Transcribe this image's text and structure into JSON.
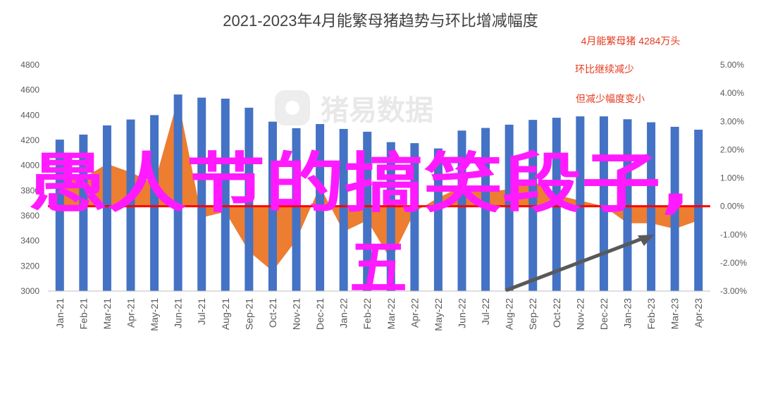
{
  "chart_data": {
    "type": "bar",
    "title": "2021-2023年4月能繁母猪趋势与环比增减幅度",
    "categories": [
      "Jan-21",
      "Feb-21",
      "Mar-21",
      "Apr-21",
      "May-21",
      "Jun-21",
      "Jul-21",
      "Aug-21",
      "Sep-21",
      "Oct-21",
      "Nov-21",
      "Dec-21",
      "Jan-22",
      "Feb-22",
      "Mar-22",
      "Apr-22",
      "May-22",
      "Jun-22",
      "Jul-22",
      "Aug-22",
      "Sep-22",
      "Oct-22",
      "Nov-22",
      "Dec-22",
      "Jan-23",
      "Feb-23",
      "Mar-23",
      "Apr-23"
    ],
    "series": [
      {
        "type": "bar",
        "axis": "left",
        "values": [
          4205,
          4245,
          4318,
          4365,
          4400,
          4564,
          4539,
          4531,
          4459,
          4348,
          4296,
          4329,
          4290,
          4268,
          4185,
          4177,
          4135,
          4277,
          4298,
          4324,
          4362,
          4379,
          4390,
          4390,
          4367,
          4343,
          4307,
          4284
        ]
      },
      {
        "type": "area",
        "axis": "right",
        "values": [
          1.2,
          1.0,
          1.5,
          1.2,
          0.8,
          3.8,
          -0.4,
          -0.2,
          -1.6,
          -2.3,
          -1.2,
          0.7,
          -0.9,
          -0.5,
          -1.9,
          -0.2,
          0.3,
          0.7,
          0.5,
          0.6,
          0.9,
          0.4,
          0.2,
          0.0,
          -0.6,
          -0.6,
          -0.8,
          -0.5
        ]
      }
    ],
    "yleft": {
      "range": [
        3000,
        4800
      ],
      "ticks": [
        "3000",
        "3200",
        "3400",
        "3600",
        "3800",
        "4000",
        "4200",
        "4400",
        "4600",
        "4800"
      ]
    },
    "yright": {
      "range": [
        -3.0,
        5.0
      ],
      "ticks": [
        "-3.00%",
        "-2.00%",
        "-1.00%",
        "0.00%",
        "1.00%",
        "2.00%",
        "3.00%",
        "4.00%",
        "5.00%"
      ]
    },
    "grid": false,
    "annotations": [
      "4月能繁母猪 4284万头",
      "环比继续减少",
      "但减少幅度变小"
    ],
    "watermark": "猪易数据",
    "colors": {
      "bar": "#4472c4",
      "area": "#ed7d31",
      "zero_line": "#ff0000",
      "arrow": "#595959",
      "note": "#e53a1e"
    }
  },
  "overlay": {
    "line1": "愚人节的搞笑段子,",
    "line2": "五",
    "color": "#ff1aff"
  }
}
